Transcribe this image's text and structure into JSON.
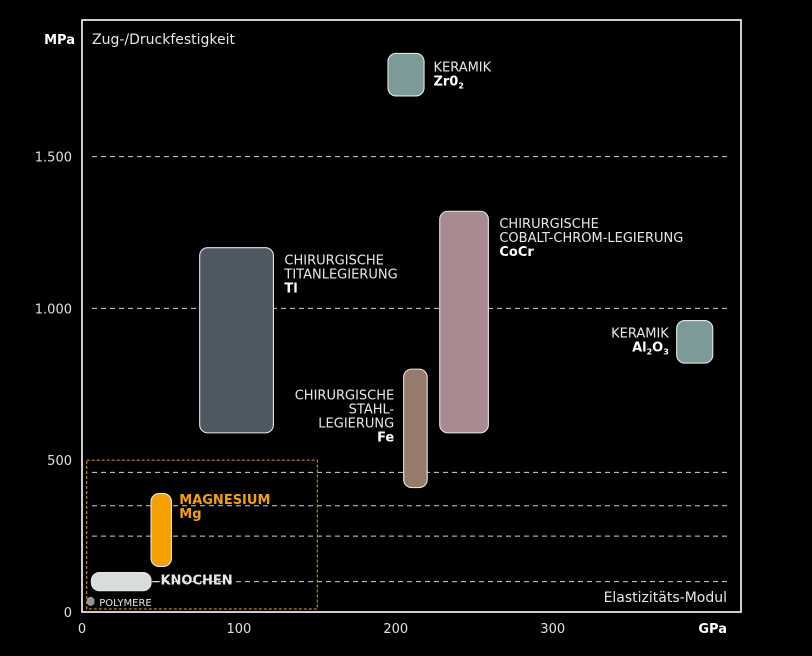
{
  "chart_data": {
    "type": "range-box",
    "ylabel": "Zug-/Druckfestigkeit",
    "y_unit": "MPa",
    "xlabel": "Elastizitäts-Modul",
    "x_unit": "GPa",
    "xlim": [
      0,
      420
    ],
    "ylim": [
      0,
      1950
    ],
    "x_ticks": [
      {
        "value": 0,
        "label": "0"
      },
      {
        "value": 100,
        "label": "100"
      },
      {
        "value": 200,
        "label": "200"
      },
      {
        "value": 300,
        "label": "300"
      }
    ],
    "y_ticks": [
      {
        "value": 0,
        "label": "0"
      },
      {
        "value": 500,
        "label": "500"
      },
      {
        "value": 1000,
        "label": "1.000"
      },
      {
        "value": 1500,
        "label": "1.500"
      }
    ],
    "gridlines_y": [
      1500,
      1000,
      460,
      350,
      250,
      100
    ],
    "materials": [
      {
        "id": "zro2",
        "x": [
          195,
          218
        ],
        "y": [
          1700,
          1840
        ],
        "color": "#7c9a98",
        "label_lines": [
          "KERAMIK"
        ],
        "formula": [
          "Zr0",
          "2",
          ""
        ],
        "align": "start",
        "label_at": [
          224,
          1780
        ]
      },
      {
        "id": "ti",
        "x": [
          75,
          122
        ],
        "y": [
          590,
          1200
        ],
        "color": "#4d5862",
        "label_lines": [
          "CHIRURGISCHE",
          "TITANLEGIERUNG"
        ],
        "formula": [
          "Tl",
          "",
          ""
        ],
        "align": "start",
        "label_at": [
          129,
          1145
        ]
      },
      {
        "id": "cocr",
        "x": [
          228,
          259
        ],
        "y": [
          590,
          1320
        ],
        "color": "#a98a90",
        "label_lines": [
          "CHIRURGISCHE",
          "COBALT-CHROM-LEGIERUNG"
        ],
        "formula": [
          "CoCr",
          "",
          ""
        ],
        "align": "start",
        "label_at": [
          266,
          1265
        ]
      },
      {
        "id": "fe",
        "x": [
          205,
          220
        ],
        "y": [
          410,
          800
        ],
        "color": "#977a6c",
        "label_lines": [
          "CHIRURGISCHE",
          "STAHL-",
          "LEGIERUNG"
        ],
        "formula": [
          "Fe",
          "",
          ""
        ],
        "align": "end",
        "label_at": [
          199,
          700
        ]
      },
      {
        "id": "al2o3",
        "x": [
          379,
          402
        ],
        "y": [
          820,
          960
        ],
        "color": "#7c9a98",
        "label_lines": [
          "KERAMIK"
        ],
        "formula": [
          "Al",
          "2",
          "O",
          "3"
        ],
        "align": "end",
        "label_at": [
          374,
          905
        ]
      },
      {
        "id": "mg",
        "x": [
          44,
          57
        ],
        "y": [
          150,
          390
        ],
        "color": "#f5a100",
        "label_lines": [
          "MAGNESIUM"
        ],
        "formula": [
          "Mg",
          "",
          ""
        ],
        "align": "start",
        "label_at": [
          62,
          355
        ],
        "label_color": "#f5a100",
        "label_bold": true
      },
      {
        "id": "knochen",
        "x": [
          6,
          44
        ],
        "y": [
          70,
          130
        ],
        "color": "#d7dcdd",
        "label_lines": [
          "KNOCHEN"
        ],
        "formula": [
          "",
          "",
          ""
        ],
        "align": "start",
        "label_at": [
          50,
          90
        ],
        "label_bold": true,
        "leader": true
      },
      {
        "id": "polymere",
        "x": [
          3,
          8
        ],
        "y": [
          20,
          50
        ],
        "color": "#8e969a",
        "label_lines": [
          "POLYMERE"
        ],
        "formula": [
          "",
          "",
          ""
        ],
        "align": "start",
        "label_at": [
          11,
          20
        ],
        "small": true
      }
    ],
    "highlight_box": {
      "x": [
        3,
        150
      ],
      "y": [
        10,
        500
      ],
      "color": "#c7841a"
    }
  }
}
